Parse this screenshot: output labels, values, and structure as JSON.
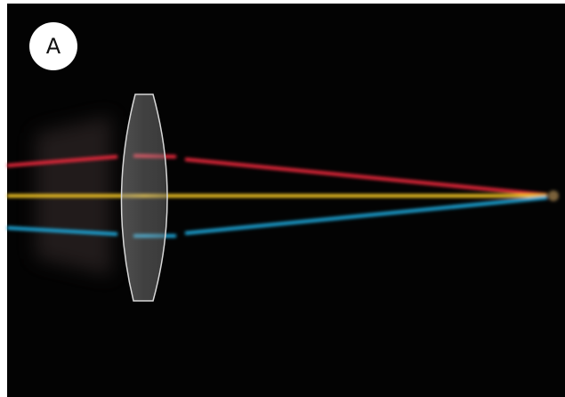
{
  "label": "A"
}
